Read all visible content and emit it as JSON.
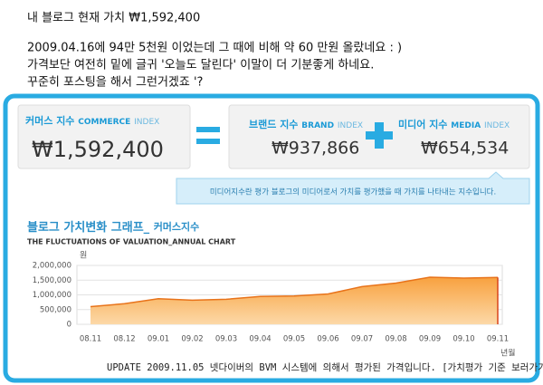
{
  "post": {
    "lines": [
      "내 블로그 현재 가치 ₩1,592,400",
      "2009.04.16에 94만 5천원 이었는데 그 때에 비해 약 60 만원 올랐네요 : )",
      "가격보단 여전히 밑에 글귀 '오늘도 달린다' 이말이 더 기분좋게 하네요.",
      "꾸준히 포스팅을 해서 그런거겠죠 '?"
    ]
  },
  "widget": {
    "commerce": {
      "label": "커머스 지수",
      "en": "COMMERCE",
      "index": "INDEX",
      "value": "₩1,592,400"
    },
    "brand": {
      "label": "브랜드 지수",
      "en": "BRAND",
      "index": "INDEX",
      "value": "₩937,866"
    },
    "media": {
      "label": "미디어 지수",
      "en": "MEDIA",
      "index": "INDEX",
      "value": "₩654,534"
    },
    "tooltip": "미디어지수란 평가 블로그의 미디어로서 가치를 평가했을 때 가치를 나타내는 지수입니다.",
    "footer": "UPDATE 2009.11.05 넷다이버의 BVM 시스템에 의해서 평가된 가격입니다.",
    "footer_link": "[가치평가 기준 보러가기]"
  },
  "chart_data": {
    "type": "area",
    "title": "블로그 가치변화 그래프_",
    "title_suffix": "커머스지수",
    "subtitle": "THE FLUCTUATIONS OF VALUATION_ANNUAL CHART",
    "y_unit": "원",
    "x_unit": "년월",
    "categories": [
      "08.11",
      "08.12",
      "09.01",
      "09.02",
      "09.03",
      "09.04",
      "09.05",
      "09.06",
      "09.07",
      "09.08",
      "09.09",
      "09.10",
      "09.11"
    ],
    "values": [
      600000,
      700000,
      870000,
      820000,
      850000,
      945000,
      960000,
      1030000,
      1280000,
      1400000,
      1600000,
      1570000,
      1592400
    ],
    "ylim": [
      0,
      2000000
    ],
    "yticks": [
      {
        "value": 0,
        "label": "0"
      },
      {
        "value": 500000,
        "label": "500,000"
      },
      {
        "value": 1000000,
        "label": "1,000,000"
      },
      {
        "value": 1500000,
        "label": "1,500,000"
      },
      {
        "value": 2000000,
        "label": "2,000,000"
      }
    ],
    "color": "#f8a13f",
    "line_color": "#e8731a",
    "grid": true
  }
}
